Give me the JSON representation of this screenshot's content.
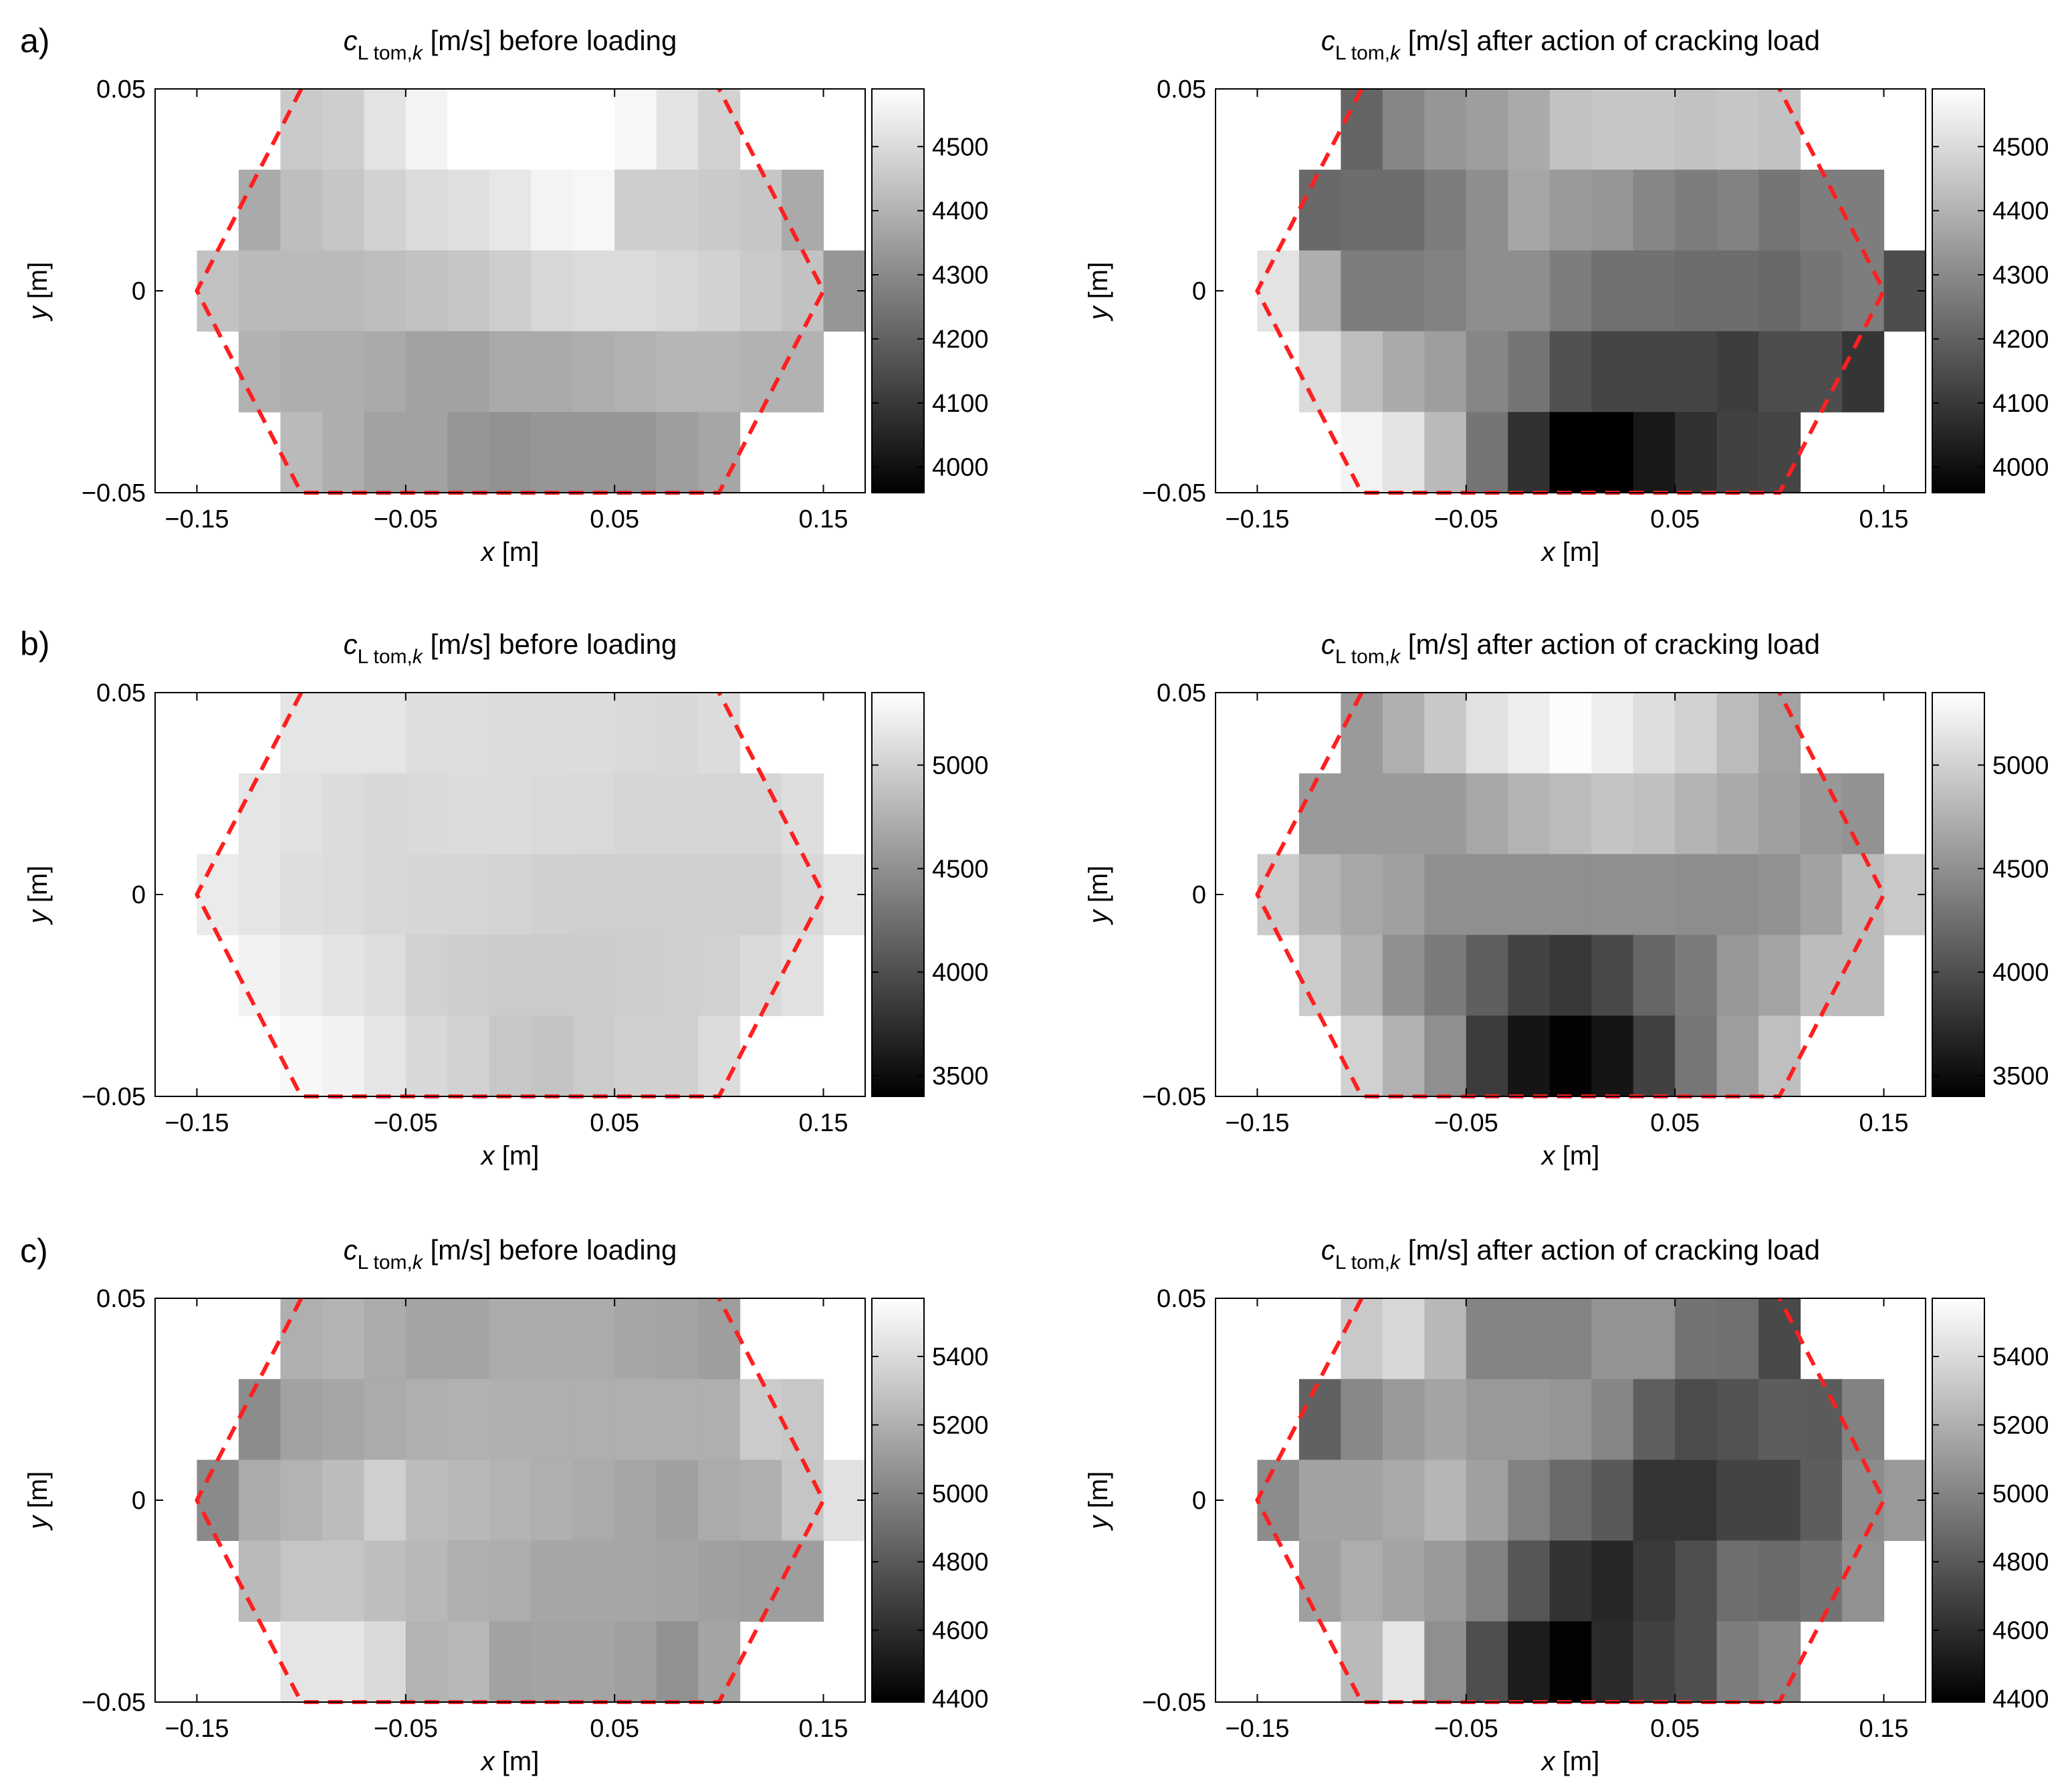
{
  "figure": {
    "row_labels": [
      "a)",
      "b)",
      "c)"
    ]
  },
  "common": {
    "title_symbol": "c",
    "title_subscript_main": "L tom,",
    "title_subscript_index": "k",
    "title_unit": " [m/s]",
    "title_before": "  before loading",
    "title_after": "  after action of cracking load",
    "x_axis_var": "x",
    "x_axis_unit": " [m]",
    "y_axis_var": "y",
    "y_axis_unit": " [m]",
    "x_ticks": [
      "−0.15",
      "−0.05",
      "0.05",
      "0.15"
    ],
    "y_ticks": [
      "0.05",
      "0",
      "−0.05"
    ]
  },
  "colors": {
    "boundary": "#ff1f1f",
    "frame": "#000000",
    "colormap": "gray"
  },
  "chart_data": [
    {
      "type": "heatmap",
      "row": "a",
      "panel": "before loading",
      "xlim": [
        -0.17,
        0.17
      ],
      "ylim": [
        -0.05,
        0.05
      ],
      "clim": [
        3960,
        4590
      ],
      "colorbar_ticks": [
        "4500",
        "4400",
        "4300",
        "4200",
        "4100",
        "4000"
      ],
      "boundary": [
        [
          -0.1,
          0.05
        ],
        [
          -0.15,
          0
        ],
        [
          -0.1,
          -0.05
        ],
        [
          0.1,
          -0.05
        ],
        [
          0.15,
          0
        ],
        [
          0.1,
          0.05
        ]
      ],
      "rows": [
        {
          "x0": -0.11,
          "values": [
            4460,
            4470,
            4520,
            4560,
            4590,
            4590,
            4590,
            4590,
            4570,
            4520,
            4480
          ]
        },
        {
          "x0": -0.13,
          "values": [
            4380,
            4430,
            4450,
            4480,
            4500,
            4510,
            4530,
            4560,
            4570,
            4470,
            4470,
            4460,
            4450,
            4380
          ]
        },
        {
          "x0": -0.15,
          "values": [
            4440,
            4420,
            4420,
            4420,
            4430,
            4440,
            4450,
            4470,
            4490,
            4500,
            4500,
            4490,
            4480,
            4460,
            4440,
            4330
          ]
        },
        {
          "x0": -0.13,
          "values": [
            4400,
            4390,
            4390,
            4380,
            4360,
            4360,
            4380,
            4380,
            4390,
            4400,
            4410,
            4410,
            4400,
            4400
          ]
        },
        {
          "x0": -0.11,
          "values": [
            4420,
            4390,
            4360,
            4360,
            4330,
            4320,
            4330,
            4330,
            4330,
            4350,
            4370
          ]
        }
      ]
    },
    {
      "type": "heatmap",
      "row": "a",
      "panel": "after action of cracking load",
      "xlim": [
        -0.17,
        0.17
      ],
      "ylim": [
        -0.05,
        0.05
      ],
      "clim": [
        3960,
        4590
      ],
      "colorbar_ticks": [
        "4500",
        "4400",
        "4300",
        "4200",
        "4100",
        "4000"
      ],
      "boundary": [
        [
          -0.1,
          0.05
        ],
        [
          -0.15,
          0
        ],
        [
          -0.1,
          -0.05
        ],
        [
          0.1,
          -0.05
        ],
        [
          0.15,
          0
        ],
        [
          0.1,
          0.05
        ]
      ],
      "rows": [
        {
          "x0": -0.11,
          "values": [
            4210,
            4290,
            4330,
            4350,
            4380,
            4440,
            4450,
            4450,
            4440,
            4450,
            4440
          ]
        },
        {
          "x0": -0.13,
          "values": [
            4220,
            4230,
            4230,
            4270,
            4310,
            4370,
            4340,
            4330,
            4290,
            4270,
            4280,
            4250,
            4270,
            4270
          ]
        },
        {
          "x0": -0.15,
          "values": [
            4520,
            4390,
            4270,
            4270,
            4280,
            4310,
            4310,
            4270,
            4240,
            4240,
            4230,
            4230,
            4220,
            4250,
            4270,
            4150
          ]
        },
        {
          "x0": -0.13,
          "values": [
            4500,
            4430,
            4380,
            4350,
            4290,
            4250,
            4160,
            4130,
            4130,
            4130,
            4110,
            4150,
            4150,
            4090
          ]
        },
        {
          "x0": -0.11,
          "values": [
            4560,
            4520,
            4420,
            4250,
            4080,
            3960,
            3960,
            4020,
            4080,
            4120,
            4130
          ]
        }
      ]
    },
    {
      "type": "heatmap",
      "row": "b",
      "panel": "before loading",
      "xlim": [
        -0.17,
        0.17
      ],
      "ylim": [
        -0.05,
        0.05
      ],
      "clim": [
        3400,
        5350
      ],
      "colorbar_ticks": [
        "5000",
        "4500",
        "4000",
        "3500"
      ],
      "boundary": [
        [
          -0.1,
          0.05
        ],
        [
          -0.15,
          0
        ],
        [
          -0.1,
          -0.05
        ],
        [
          0.1,
          -0.05
        ],
        [
          0.15,
          0
        ],
        [
          0.1,
          0.05
        ]
      ],
      "rows": [
        {
          "x0": -0.11,
          "values": [
            5150,
            5150,
            5150,
            5100,
            5100,
            5080,
            5080,
            5080,
            5060,
            5050,
            5080
          ]
        },
        {
          "x0": -0.13,
          "values": [
            5150,
            5120,
            5080,
            5050,
            5070,
            5080,
            5080,
            5070,
            5060,
            5040,
            5040,
            5040,
            5040,
            5100
          ]
        },
        {
          "x0": -0.15,
          "values": [
            5200,
            5150,
            5100,
            5080,
            5050,
            5040,
            5030,
            5010,
            4990,
            4980,
            4980,
            4980,
            4980,
            4980,
            5050,
            5150
          ]
        },
        {
          "x0": -0.13,
          "values": [
            5250,
            5200,
            5140,
            5100,
            5000,
            4970,
            4950,
            4950,
            4960,
            4970,
            4980,
            5000,
            5060,
            5120
          ]
        },
        {
          "x0": -0.11,
          "values": [
            5300,
            5250,
            5150,
            5050,
            5000,
            4920,
            4900,
            4950,
            4990,
            4990,
            5080
          ]
        }
      ]
    },
    {
      "type": "heatmap",
      "row": "b",
      "panel": "after action of cracking load",
      "xlim": [
        -0.17,
        0.17
      ],
      "ylim": [
        -0.05,
        0.05
      ],
      "clim": [
        3400,
        5350
      ],
      "colorbar_ticks": [
        "5000",
        "4500",
        "4000",
        "3500"
      ],
      "boundary": [
        [
          -0.1,
          0.05
        ],
        [
          -0.15,
          0
        ],
        [
          -0.1,
          -0.05
        ],
        [
          0.1,
          -0.05
        ],
        [
          0.15,
          0
        ],
        [
          0.1,
          0.05
        ]
      ],
      "rows": [
        {
          "x0": -0.11,
          "values": [
            4580,
            4740,
            4930,
            5120,
            5210,
            5330,
            5210,
            5090,
            5000,
            4830,
            4650
          ]
        },
        {
          "x0": -0.13,
          "values": [
            4580,
            4580,
            4580,
            4580,
            4680,
            4770,
            4830,
            4900,
            4870,
            4770,
            4700,
            4620,
            4560,
            4520
          ]
        },
        {
          "x0": -0.15,
          "values": [
            4950,
            4780,
            4680,
            4620,
            4490,
            4490,
            4490,
            4490,
            4490,
            4490,
            4480,
            4480,
            4520,
            4640,
            4840,
            4940
          ]
        },
        {
          "x0": -0.13,
          "values": [
            4950,
            4760,
            4500,
            4340,
            4130,
            3910,
            3830,
            3960,
            4180,
            4340,
            4560,
            4650,
            4840,
            4840
          ]
        },
        {
          "x0": -0.11,
          "values": [
            5000,
            4750,
            4490,
            3860,
            3560,
            3420,
            3560,
            3900,
            4300,
            4600,
            4860
          ]
        }
      ]
    },
    {
      "type": "heatmap",
      "row": "c",
      "panel": "before loading",
      "xlim": [
        -0.17,
        0.17
      ],
      "ylim": [
        -0.05,
        0.05
      ],
      "clim": [
        4390,
        5570
      ],
      "colorbar_ticks": [
        "5400",
        "5200",
        "5000",
        "4800",
        "4600",
        "4400"
      ],
      "boundary": [
        [
          -0.1,
          0.05
        ],
        [
          -0.15,
          0
        ],
        [
          -0.1,
          -0.05
        ],
        [
          0.1,
          -0.05
        ],
        [
          0.15,
          0
        ],
        [
          0.1,
          0.05
        ]
      ],
      "rows": [
        {
          "x0": -0.11,
          "values": [
            5200,
            5220,
            5180,
            5150,
            5150,
            5180,
            5180,
            5180,
            5160,
            5150,
            5120
          ]
        },
        {
          "x0": -0.13,
          "values": [
            5040,
            5140,
            5160,
            5180,
            5200,
            5210,
            5200,
            5200,
            5200,
            5200,
            5200,
            5200,
            5330,
            5310
          ]
        },
        {
          "x0": -0.15,
          "values": [
            5030,
            5180,
            5220,
            5260,
            5350,
            5260,
            5240,
            5220,
            5200,
            5180,
            5160,
            5130,
            5180,
            5200,
            5300,
            5430
          ]
        },
        {
          "x0": -0.13,
          "values": [
            5250,
            5300,
            5300,
            5270,
            5240,
            5200,
            5190,
            5160,
            5160,
            5160,
            5150,
            5130,
            5120,
            5120
          ]
        },
        {
          "x0": -0.11,
          "values": [
            5450,
            5450,
            5400,
            5220,
            5240,
            5140,
            5150,
            5150,
            5130,
            5060,
            5150
          ]
        }
      ]
    },
    {
      "type": "heatmap",
      "row": "c",
      "panel": "after action of cracking load",
      "xlim": [
        -0.17,
        0.17
      ],
      "ylim": [
        -0.05,
        0.05
      ],
      "clim": [
        4390,
        5570
      ],
      "colorbar_ticks": [
        "5400",
        "5200",
        "5000",
        "4800",
        "4600",
        "4400"
      ],
      "boundary": [
        [
          -0.1,
          0.05
        ],
        [
          -0.15,
          0
        ],
        [
          -0.1,
          -0.05
        ],
        [
          0.1,
          -0.05
        ],
        [
          0.15,
          0
        ],
        [
          0.1,
          0.05
        ]
      ],
      "rows": [
        {
          "x0": -0.11,
          "values": [
            5320,
            5390,
            5240,
            5000,
            5000,
            5000,
            5070,
            5070,
            4920,
            4910,
            4730
          ]
        },
        {
          "x0": -0.13,
          "values": [
            4840,
            5020,
            5100,
            5150,
            5100,
            5100,
            5080,
            5010,
            4830,
            4740,
            4770,
            4820,
            4810,
            4990
          ]
        },
        {
          "x0": -0.15,
          "values": [
            5040,
            5140,
            5140,
            5170,
            5230,
            5130,
            4990,
            4880,
            4800,
            4630,
            4630,
            4700,
            4700,
            4820,
            5040,
            5100
          ]
        },
        {
          "x0": -0.13,
          "values": [
            5130,
            5190,
            5150,
            5100,
            4990,
            4790,
            4620,
            4570,
            4660,
            4750,
            4900,
            4880,
            4920,
            5060
          ]
        },
        {
          "x0": -0.11,
          "values": [
            5250,
            5450,
            5050,
            4750,
            4520,
            4400,
            4590,
            4690,
            4750,
            4970,
            5020
          ]
        }
      ]
    }
  ]
}
